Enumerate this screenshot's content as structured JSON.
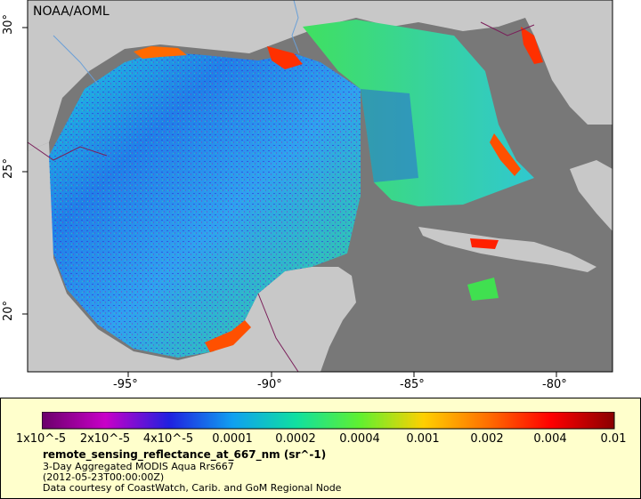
{
  "map": {
    "watermark": "NOAA/AOML",
    "lon_ticks": [
      "-95°",
      "-90°",
      "-85°",
      "-80°"
    ],
    "lat_ticks": [
      "30°",
      "25°",
      "20°"
    ],
    "colors": {
      "land": "#c8c8c8",
      "nodata": "#787878",
      "boundary": "#7a1f5a",
      "river": "#6aa0d8"
    }
  },
  "legend": {
    "colorbar_labels": [
      "1x10^-5",
      "2x10^-5",
      "4x10^-5",
      "0.0001",
      "0.0002",
      "0.0004",
      "0.001",
      "0.002",
      "0.004",
      "0.01"
    ],
    "colorbar_colors": [
      "#6a006a",
      "#c800c8",
      "#2020e0",
      "#10a0f0",
      "#10e0a0",
      "#60f030",
      "#ffd000",
      "#ff7000",
      "#ff0000",
      "#8a0000"
    ],
    "title": "remote_sensing_reflectance_at_667_nm (sr^-1)",
    "line1": "3-Day Aggregated MODIS Aqua Rrs667",
    "line2": "(2012-05-23T00:00:00Z)",
    "line3": "Data courtesy of CoastWatch, Carib. and GoM Regional Node"
  }
}
